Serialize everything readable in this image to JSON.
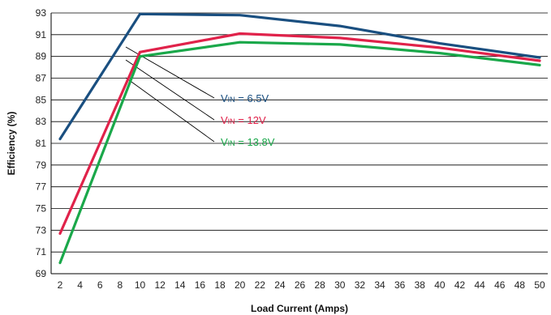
{
  "chart_data": {
    "type": "line",
    "xlabel": "Load Current (Amps)",
    "ylabel": "Efficiency (%)",
    "xlim": [
      2,
      50
    ],
    "ylim": [
      69,
      93
    ],
    "x_ticks": [
      "2",
      "4",
      "6",
      "8",
      "10",
      "12",
      "14",
      "16",
      "18",
      "20",
      "22",
      "24",
      "26",
      "28",
      "30",
      "32",
      "34",
      "36",
      "38",
      "40",
      "42",
      "44",
      "46",
      "48",
      "50"
    ],
    "y_ticks": [
      "69",
      "71",
      "73",
      "75",
      "77",
      "79",
      "81",
      "83",
      "85",
      "87",
      "89",
      "91",
      "93"
    ],
    "grid": "horizontal",
    "series": [
      {
        "name": "VIN = 6.5V",
        "color": "#1a4f80",
        "x": [
          2,
          10,
          20,
          30,
          40,
          50
        ],
        "y": [
          81.4,
          92.9,
          92.8,
          91.8,
          90.2,
          88.9
        ]
      },
      {
        "name": "VIN = 12V",
        "color": "#e0224a",
        "x": [
          2,
          10,
          20,
          30,
          40,
          50
        ],
        "y": [
          72.7,
          89.4,
          91.1,
          90.7,
          89.8,
          88.6
        ]
      },
      {
        "name": "VIN = 13.8V",
        "color": "#1aa84a",
        "x": [
          2,
          10,
          20,
          30,
          40,
          50
        ],
        "y": [
          70.0,
          89.0,
          90.3,
          90.1,
          89.3,
          88.2
        ]
      }
    ],
    "legend": [
      {
        "prefix": "V",
        "sub": "IN",
        "rest": " = 6.5V",
        "color": "#1a4f80"
      },
      {
        "prefix": "V",
        "sub": "IN",
        "rest": " = 12V",
        "color": "#e0224a"
      },
      {
        "prefix": "V",
        "sub": "IN",
        "rest": " = 13.8V",
        "color": "#1aa84a"
      }
    ]
  }
}
